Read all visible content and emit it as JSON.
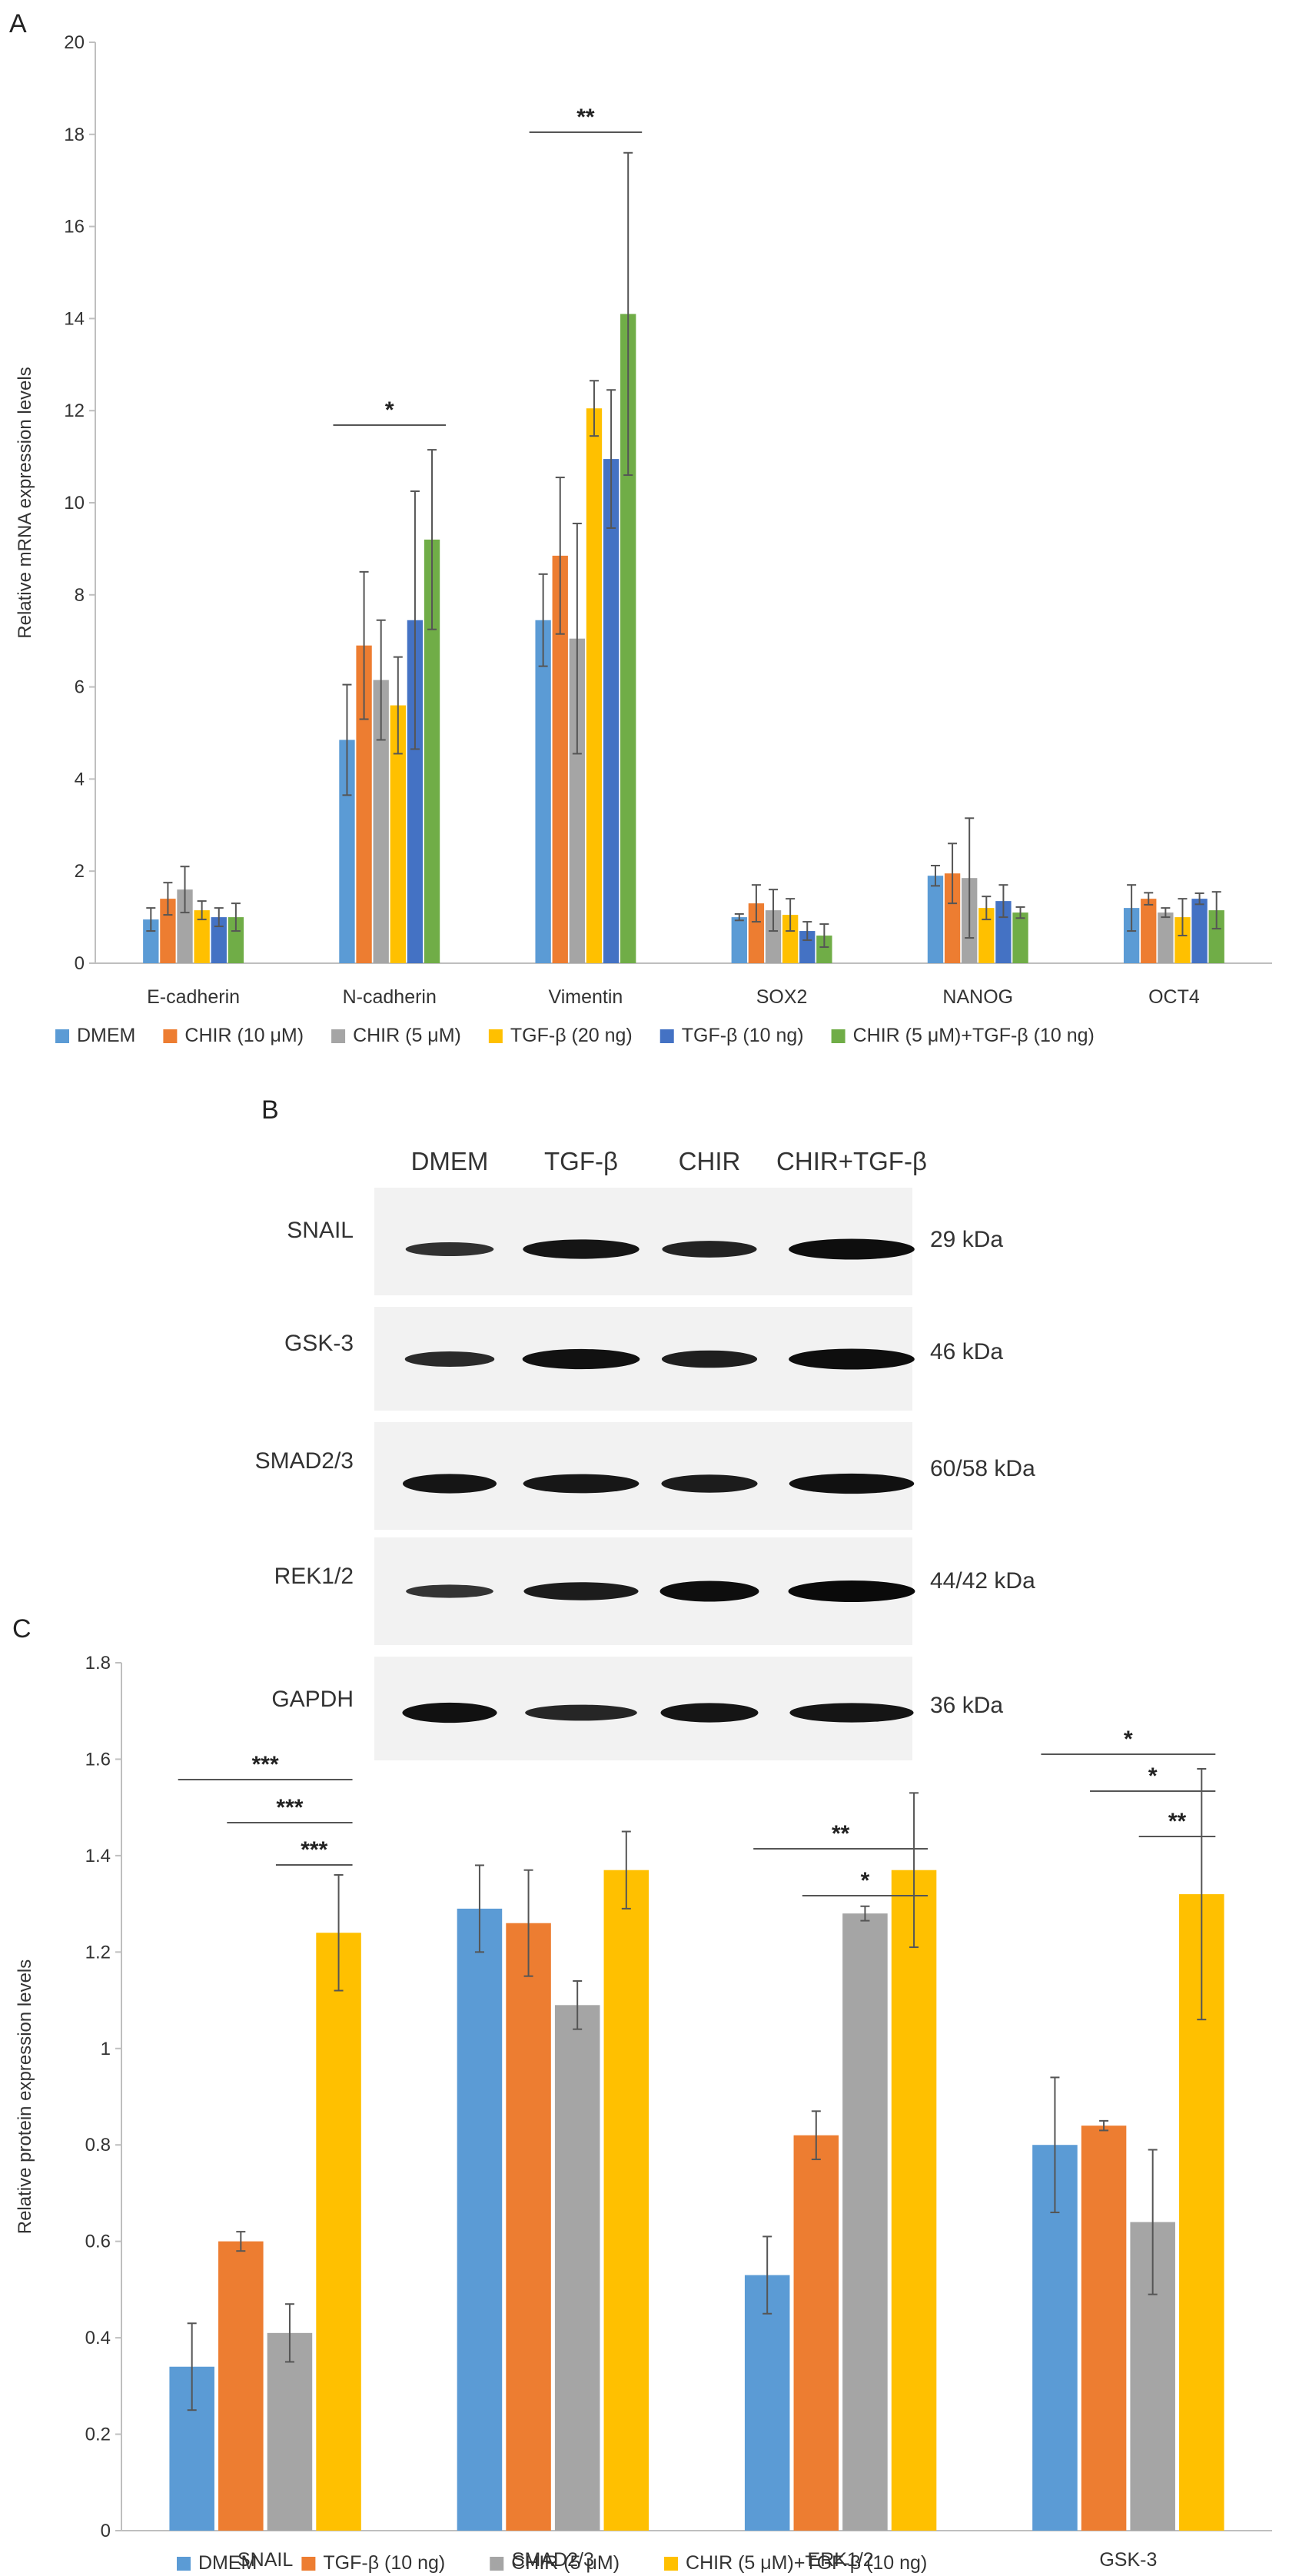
{
  "colors": {
    "DMEM": "#5b9bd5",
    "CHIR10": "#ed7d31",
    "CHIR5": "#a5a5a5",
    "TGF20": "#ffc000",
    "TGF10": "#4472c4",
    "COMBO": "#70ad47"
  },
  "panel_a": {
    "letter": "A",
    "chart_data": {
      "type": "bar",
      "ylabel": "Relative mRNA expression levels",
      "ylim": [
        0,
        20
      ],
      "yticks": [
        0,
        2,
        4,
        6,
        8,
        10,
        12,
        14,
        16,
        18,
        20
      ],
      "categories": [
        "E-cadherin",
        "N-cadherin",
        "Vimentin",
        "SOX2",
        "NANOG",
        "OCT4"
      ],
      "series": [
        {
          "name": "DMEM",
          "color": "#5b9bd5",
          "values": [
            0.95,
            4.85,
            7.45,
            1.0,
            1.9,
            1.2
          ],
          "errors": [
            0.25,
            1.2,
            1.0,
            0.07,
            0.22,
            0.5
          ]
        },
        {
          "name": "CHIR (10 μM)",
          "color": "#ed7d31",
          "values": [
            1.4,
            6.9,
            8.85,
            1.3,
            1.95,
            1.4
          ],
          "errors": [
            0.35,
            1.6,
            1.7,
            0.4,
            0.65,
            0.13
          ]
        },
        {
          "name": "CHIR (5 μM)",
          "color": "#a5a5a5",
          "values": [
            1.6,
            6.15,
            7.05,
            1.15,
            1.85,
            1.1
          ],
          "errors": [
            0.5,
            1.3,
            2.5,
            0.45,
            1.3,
            0.1
          ]
        },
        {
          "name": "TGF-β (20 ng)",
          "color": "#ffc000",
          "values": [
            1.15,
            5.6,
            12.05,
            1.05,
            1.2,
            1.0
          ],
          "errors": [
            0.2,
            1.05,
            0.6,
            0.35,
            0.25,
            0.4
          ]
        },
        {
          "name": "TGF-β (10 ng)",
          "color": "#4472c4",
          "values": [
            1.0,
            7.45,
            10.95,
            0.7,
            1.35,
            1.4
          ],
          "errors": [
            0.2,
            2.8,
            1.5,
            0.2,
            0.35,
            0.12
          ]
        },
        {
          "name": "CHIR (5 μM)+TGF-β (10 ng)",
          "color": "#70ad47",
          "values": [
            1.0,
            9.2,
            14.1,
            0.6,
            1.1,
            1.15
          ],
          "errors": [
            0.3,
            1.95,
            3.5,
            0.25,
            0.12,
            0.4
          ]
        }
      ],
      "significance": [
        {
          "label": "*",
          "category": "N-cadherin"
        },
        {
          "label": "**",
          "category": "Vimentin"
        }
      ],
      "legend": "bottom"
    }
  },
  "panel_b": {
    "letter": "B",
    "lanes": [
      "DMEM",
      "TGF-β",
      "CHIR",
      "CHIR+TGF-β"
    ],
    "blots": [
      {
        "protein": "SNAIL",
        "size": "29 kDa",
        "intensity": [
          0.45,
          0.85,
          0.65,
          0.95
        ]
      },
      {
        "protein": "GSK-3",
        "size": "46 kDa",
        "intensity": [
          0.55,
          0.9,
          0.7,
          0.95
        ]
      },
      {
        "protein": "SMAD2/3",
        "size": "60/58 kDa",
        "intensity": [
          0.85,
          0.82,
          0.75,
          0.9
        ]
      },
      {
        "protein": "REK1/2",
        "size": "44/42 kDa",
        "intensity": [
          0.4,
          0.75,
          0.95,
          1.0
        ]
      },
      {
        "protein": "GAPDH",
        "size": "36 kDa",
        "intensity": [
          0.9,
          0.6,
          0.85,
          0.85
        ]
      }
    ]
  },
  "panel_c": {
    "letter": "C",
    "chart_data": {
      "type": "bar",
      "ylabel": "Relative protein expression levels",
      "ylim": [
        0,
        1.8
      ],
      "yticks": [
        "0",
        "0.2",
        "0.4",
        "0.6",
        "0.8",
        "1",
        "1.2",
        "1.4",
        "1.6",
        "1.8"
      ],
      "categories": [
        "SNAIL",
        "SMAD2/3",
        "ERK1/2",
        "GSK-3"
      ],
      "series": [
        {
          "name": "DMEM",
          "color": "#5b9bd5",
          "values": [
            0.34,
            1.29,
            0.53,
            0.8
          ],
          "errors": [
            0.09,
            0.09,
            0.08,
            0.14
          ]
        },
        {
          "name": "TGF-β (10 ng)",
          "color": "#ed7d31",
          "values": [
            0.6,
            1.26,
            0.82,
            0.84
          ],
          "errors": [
            0.02,
            0.11,
            0.05,
            0.01
          ]
        },
        {
          "name": "CHIR (5 μM)",
          "color": "#a5a5a5",
          "values": [
            0.41,
            1.09,
            1.28,
            0.64
          ],
          "errors": [
            0.06,
            0.05,
            0.015,
            0.15
          ]
        },
        {
          "name": "CHIR (5 μM)+TGF-β (10 ng)",
          "color": "#ffc000",
          "values": [
            1.24,
            1.37,
            1.37,
            1.32
          ],
          "errors": [
            0.12,
            0.08,
            0.16,
            0.26
          ]
        }
      ],
      "significance": [
        {
          "label": "***",
          "category": "SNAIL"
        },
        {
          "label": "***",
          "category": "SNAIL"
        },
        {
          "label": "***",
          "category": "SNAIL"
        },
        {
          "label": "**",
          "category": "ERK1/2"
        },
        {
          "label": "*",
          "category": "ERK1/2"
        },
        {
          "label": "*",
          "category": "GSK-3"
        },
        {
          "label": "*",
          "category": "GSK-3"
        },
        {
          "label": "**",
          "category": "GSK-3"
        }
      ],
      "legend": "bottom"
    }
  }
}
